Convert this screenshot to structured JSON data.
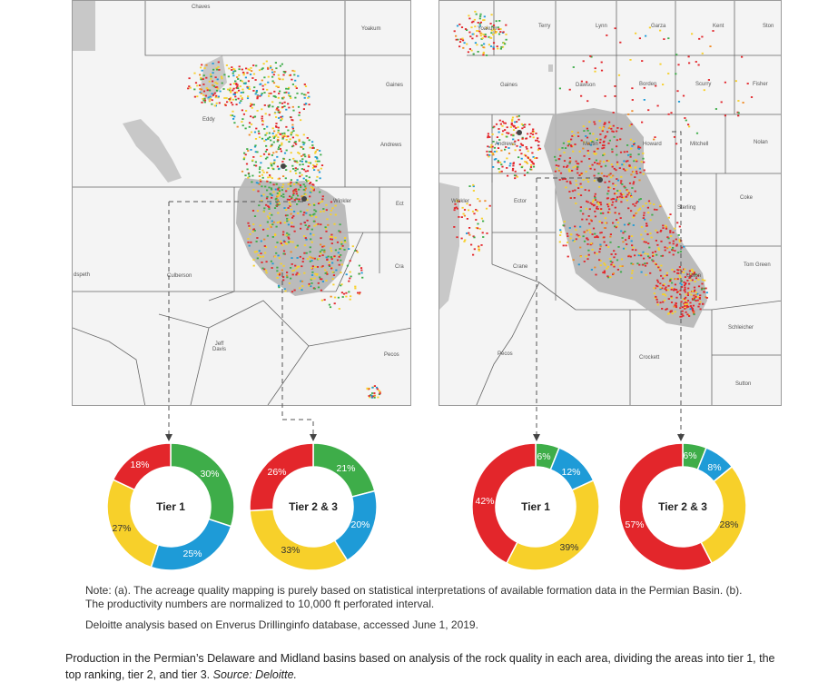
{
  "maps": {
    "left": {
      "counties": [
        "Chaves",
        "Yoakum",
        "Gaines",
        "Andrews",
        "Eddy",
        "Winkler",
        "Ect",
        "Cra",
        "dspeth",
        "Culberson",
        "Jeff\nDavis",
        "Pecos"
      ]
    },
    "right": {
      "counties": [
        "Yoakum",
        "Terry",
        "Lynn",
        "Garza",
        "Kent",
        "Ston",
        "Gaines",
        "Dawson",
        "Borden",
        "Scurry",
        "Fisher",
        "Andrews",
        "Martin",
        "Howard",
        "Mitchell",
        "Nolan",
        "Winkler",
        "Ector",
        "Coke",
        "Sterling",
        "Crane",
        "Tom Green",
        "Upton",
        "Schleicher",
        "Pecos",
        "Crockett",
        "Sutton"
      ]
    }
  },
  "colors": {
    "red": "#e3262b",
    "green": "#3ead49",
    "blue": "#1e9bd7",
    "yellow": "#f7d02a",
    "basin": "#b5b5b5"
  },
  "chart_data": [
    {
      "type": "pie",
      "title": "Tier 1",
      "labels": [
        "18%",
        "30%",
        "25%",
        "27%"
      ],
      "slices": [
        {
          "color": "green",
          "value": 30
        },
        {
          "color": "blue",
          "value": 25
        },
        {
          "color": "yellow",
          "value": 27
        },
        {
          "color": "red",
          "value": 18
        }
      ]
    },
    {
      "type": "pie",
      "title": "Tier 2 & 3",
      "labels": [
        "26%",
        "21%",
        "20%",
        "33%"
      ],
      "slices": [
        {
          "color": "green",
          "value": 21
        },
        {
          "color": "blue",
          "value": 20
        },
        {
          "color": "yellow",
          "value": 33
        },
        {
          "color": "red",
          "value": 26
        }
      ]
    },
    {
      "type": "pie",
      "title": "Tier 1",
      "labels": [
        "6%",
        "12%",
        "42%",
        "39%"
      ],
      "slices": [
        {
          "color": "green",
          "value": 6
        },
        {
          "color": "blue",
          "value": 12
        },
        {
          "color": "yellow",
          "value": 39
        },
        {
          "color": "red",
          "value": 42
        }
      ]
    },
    {
      "type": "pie",
      "title": "Tier 2 & 3",
      "labels": [
        "6%",
        "8%",
        "57%",
        "28%"
      ],
      "slices": [
        {
          "color": "green",
          "value": 6
        },
        {
          "color": "blue",
          "value": 8
        },
        {
          "color": "yellow",
          "value": 28
        },
        {
          "color": "red",
          "value": 57
        }
      ]
    }
  ],
  "notes": {
    "a": "Note: (a). The acreage quality mapping is purely based on statistical interpretations of available formation data in the Permian Basin. (b). The productivity numbers are normalized to 10,000 ft perforated interval.",
    "b": "Deloitte analysis based on Enverus Drillinginfo database, accessed June 1, 2019."
  },
  "caption": {
    "text": "Production in the Permian’s Delaware and Midland basins based on analysis of the rock quality in each area, dividing the areas into tier 1, the top ranking, tier 2, and tier 3.",
    "source": "Source: Deloitte."
  }
}
